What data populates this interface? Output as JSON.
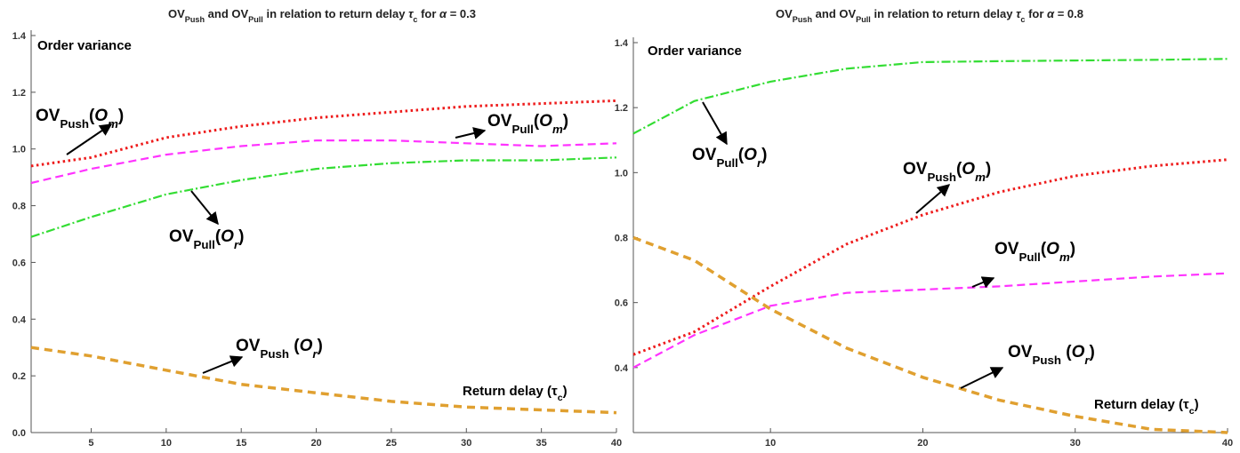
{
  "chart_data": [
    {
      "type": "line",
      "title": [
        {
          "text": "OV"
        },
        {
          "text": "Push",
          "sub": true
        },
        {
          "text": " and OV"
        },
        {
          "text": "Pull",
          "sub": true
        },
        {
          "text": " in relation to return delay "
        },
        {
          "text": "τ",
          "italic": true
        },
        {
          "text": "c",
          "sub": true
        },
        {
          "text": " for "
        },
        {
          "text": "α",
          "italic": true
        },
        {
          "text": " = 0.3"
        }
      ],
      "y_label": "Order variance",
      "x_label": [
        {
          "text": "Return delay ("
        },
        {
          "text": "τ"
        },
        {
          "text": "c",
          "sub": true
        },
        {
          "text": ")"
        }
      ],
      "x": [
        1,
        5,
        10,
        15,
        20,
        25,
        30,
        35,
        40
      ],
      "xlim": [
        1,
        40
      ],
      "xticks": [
        5,
        10,
        15,
        20,
        25,
        30,
        35,
        40
      ],
      "ylim": [
        0,
        1.4
      ],
      "yticks": [
        {
          "value": 0,
          "label": "0.0"
        },
        0.2,
        0.4,
        0.6,
        0.8,
        {
          "value": 1,
          "label": "1.0"
        },
        1.2,
        1.4
      ],
      "series": [
        {
          "label": [
            {
              "text": "OV"
            },
            {
              "text": "Push",
              "sub": true
            },
            {
              "text": "("
            },
            {
              "text": "O",
              "italic": true
            },
            {
              "text": "m",
              "sub": true,
              "italic": true
            },
            {
              "text": ")"
            }
          ],
          "color": "#ee1c1c",
          "style": "dotted",
          "values": [
            0.94,
            0.97,
            1.04,
            1.08,
            1.11,
            1.13,
            1.15,
            1.16,
            1.17
          ]
        },
        {
          "label": [
            {
              "text": "OV"
            },
            {
              "text": "Pull",
              "sub": true
            },
            {
              "text": "("
            },
            {
              "text": "O",
              "italic": true
            },
            {
              "text": "m",
              "sub": true,
              "italic": true
            },
            {
              "text": ")"
            }
          ],
          "color": "#ff33ff",
          "style": "dashed",
          "values": [
            0.88,
            0.93,
            0.98,
            1.01,
            1.03,
            1.03,
            1.02,
            1.01,
            1.02
          ]
        },
        {
          "label": [
            {
              "text": "OV"
            },
            {
              "text": "Pull",
              "sub": true
            },
            {
              "text": "("
            },
            {
              "text": "O",
              "italic": true
            },
            {
              "text": "r",
              "sub": true,
              "italic": true
            },
            {
              "text": ")"
            }
          ],
          "color": "#33dd33",
          "style": "dashdot",
          "values": [
            0.69,
            0.76,
            0.84,
            0.89,
            0.93,
            0.95,
            0.96,
            0.96,
            0.97
          ]
        },
        {
          "label": [
            {
              "text": "OV"
            },
            {
              "text": "Push",
              "sub": true
            },
            {
              "text": " ("
            },
            {
              "text": "O",
              "italic": true
            },
            {
              "text": "r",
              "sub": true,
              "italic": true
            },
            {
              "text": ")"
            }
          ],
          "color": "#e0a030",
          "style": "thickdashed",
          "values": [
            0.3,
            0.27,
            0.22,
            0.17,
            0.14,
            0.11,
            0.09,
            0.08,
            0.07
          ]
        }
      ]
    },
    {
      "type": "line",
      "title": [
        {
          "text": "OV"
        },
        {
          "text": "Push",
          "sub": true
        },
        {
          "text": " and OV"
        },
        {
          "text": "Pull",
          "sub": true
        },
        {
          "text": " in relation to return delay "
        },
        {
          "text": "τ",
          "italic": true
        },
        {
          "text": "c",
          "sub": true
        },
        {
          "text": " for "
        },
        {
          "text": "α",
          "italic": true
        },
        {
          "text": " = 0.8"
        }
      ],
      "y_label": "Order variance",
      "x_label": [
        {
          "text": "Return delay ("
        },
        {
          "text": "τ"
        },
        {
          "text": "c",
          "sub": true
        },
        {
          "text": ")"
        }
      ],
      "x": [
        1,
        5,
        10,
        15,
        20,
        25,
        30,
        35,
        40
      ],
      "xlim": [
        1,
        40
      ],
      "xticks": [
        10,
        20,
        30,
        40
      ],
      "ylim": [
        0.2,
        1.4
      ],
      "yticks": [
        0.4,
        0.6,
        0.8,
        {
          "value": 1,
          "label": "1.0"
        },
        1.2,
        1.4
      ],
      "series": [
        {
          "label": [
            {
              "text": "OV"
            },
            {
              "text": "Push",
              "sub": true
            },
            {
              "text": "("
            },
            {
              "text": "O",
              "italic": true
            },
            {
              "text": "m",
              "sub": true,
              "italic": true
            },
            {
              "text": ")"
            }
          ],
          "color": "#ee1c1c",
          "style": "dotted",
          "values": [
            0.44,
            0.51,
            0.65,
            0.78,
            0.87,
            0.94,
            0.99,
            1.02,
            1.04
          ]
        },
        {
          "label": [
            {
              "text": "OV"
            },
            {
              "text": "Pull",
              "sub": true
            },
            {
              "text": "("
            },
            {
              "text": "O",
              "italic": true
            },
            {
              "text": "m",
              "sub": true,
              "italic": true
            },
            {
              "text": ")"
            }
          ],
          "color": "#ff33ff",
          "style": "dashed",
          "values": [
            0.4,
            0.5,
            0.59,
            0.63,
            0.64,
            0.65,
            0.665,
            0.68,
            0.69
          ]
        },
        {
          "label": [
            {
              "text": "OV"
            },
            {
              "text": "Pull",
              "sub": true
            },
            {
              "text": "("
            },
            {
              "text": "O",
              "italic": true
            },
            {
              "text": "r",
              "sub": true,
              "italic": true
            },
            {
              "text": ")"
            }
          ],
          "color": "#33dd33",
          "style": "dashdot",
          "values": [
            1.12,
            1.22,
            1.28,
            1.32,
            1.34,
            1.343,
            1.345,
            1.347,
            1.35
          ]
        },
        {
          "label": [
            {
              "text": "OV"
            },
            {
              "text": "Push",
              "sub": true
            },
            {
              "text": " ("
            },
            {
              "text": "O",
              "italic": true
            },
            {
              "text": "r",
              "sub": true,
              "italic": true
            },
            {
              "text": ")"
            }
          ],
          "color": "#e0a030",
          "style": "thickdashed",
          "values": [
            0.8,
            0.73,
            0.58,
            0.46,
            0.37,
            0.3,
            0.25,
            0.21,
            0.2
          ]
        }
      ]
    }
  ]
}
